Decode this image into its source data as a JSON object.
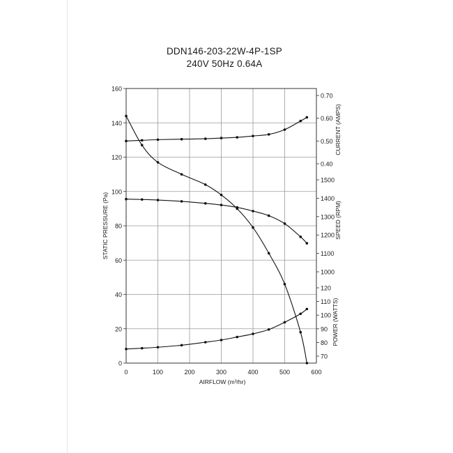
{
  "chart_data": {
    "type": "line",
    "title": "DDN146-203-22W-4P-1SP",
    "subtitle": "240V 50Hz 0.64A",
    "xlabel": "AIRFLOW (m³/hr)",
    "xlim": [
      0,
      600
    ],
    "xticks": [
      "0",
      "100",
      "200",
      "300",
      "400",
      "500",
      "600"
    ],
    "grid": true,
    "axes": [
      {
        "id": "pressure",
        "label": "STATIC PRESSURE (Pa)",
        "side": "left",
        "range": [
          0,
          160
        ],
        "ticks": [
          "0",
          "20",
          "40",
          "60",
          "80",
          "100",
          "120",
          "140",
          "160"
        ]
      },
      {
        "id": "current",
        "label": "CURRENT (AMPS)",
        "side": "right",
        "range": [
          0.4,
          0.7
        ],
        "ticks": [
          "0.40",
          "0.50",
          "0.60",
          "0.70"
        ]
      },
      {
        "id": "speed",
        "label": "SPEED (RPM)",
        "side": "right",
        "range": [
          1000,
          1500
        ],
        "ticks": [
          "1000",
          "1100",
          "1200",
          "1300",
          "1400",
          "1500"
        ]
      },
      {
        "id": "power",
        "label": "POWER (WATTS)",
        "side": "right",
        "range": [
          70,
          120
        ],
        "ticks": [
          "70",
          "80",
          "90",
          "100",
          "110",
          "120"
        ]
      }
    ],
    "series": [
      {
        "axis": "pressure",
        "x": [
          0,
          50,
          100,
          175,
          250,
          300,
          350,
          400,
          450,
          500,
          550,
          570
        ],
        "y": [
          144,
          127,
          117,
          110,
          104,
          98,
          90,
          79,
          64,
          46,
          18,
          0
        ]
      },
      {
        "axis": "current",
        "x": [
          0,
          50,
          100,
          175,
          250,
          300,
          350,
          400,
          450,
          500,
          550,
          570
        ],
        "y": [
          0.5,
          0.503,
          0.506,
          0.508,
          0.51,
          0.513,
          0.516,
          0.522,
          0.529,
          0.55,
          0.588,
          0.604
        ]
      },
      {
        "axis": "speed",
        "x": [
          0,
          50,
          100,
          175,
          250,
          300,
          350,
          400,
          450,
          500,
          550,
          570
        ],
        "y": [
          1395,
          1393,
          1390,
          1383,
          1372,
          1363,
          1350,
          1330,
          1305,
          1262,
          1190,
          1155
        ]
      },
      {
        "axis": "power",
        "x": [
          0,
          50,
          100,
          175,
          250,
          300,
          350,
          400,
          450,
          500,
          550,
          570
        ],
        "y": [
          75.2,
          75.8,
          76.5,
          78,
          80.2,
          81.8,
          84,
          86.3,
          89.5,
          94.8,
          101,
          104.5
        ]
      }
    ]
  }
}
